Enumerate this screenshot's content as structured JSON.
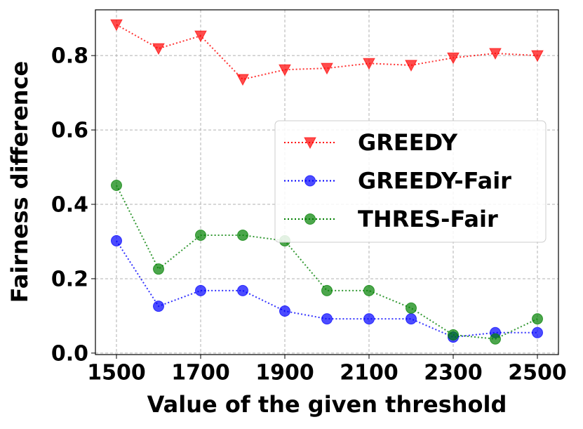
{
  "chart_data": {
    "type": "line",
    "x_label": "Value of the given threshold",
    "y_label": "Fairness difference",
    "x": [
      1500,
      1600,
      1700,
      1800,
      1900,
      2000,
      2100,
      2200,
      2300,
      2400,
      2500
    ],
    "series": [
      {
        "name": "GREEDY",
        "color": "#ff0000",
        "marker": "triangle-down",
        "values": [
          0.883,
          0.819,
          0.853,
          0.736,
          0.762,
          0.766,
          0.779,
          0.774,
          0.794,
          0.806,
          0.8
        ]
      },
      {
        "name": "GREEDY-Fair",
        "color": "#0000ff",
        "marker": "circle",
        "values": [
          0.302,
          0.126,
          0.168,
          0.168,
          0.113,
          0.092,
          0.092,
          0.092,
          0.043,
          0.055,
          0.055
        ]
      },
      {
        "name": "THRES-Fair",
        "color": "#008000",
        "marker": "circle",
        "values": [
          0.451,
          0.226,
          0.317,
          0.317,
          0.302,
          0.168,
          0.168,
          0.121,
          0.049,
          0.038,
          0.092
        ]
      }
    ],
    "xlim": [
      1450,
      2550
    ],
    "ylim": [
      -0.004,
      0.923
    ],
    "xticks": [
      1500,
      1700,
      1900,
      2100,
      2300,
      2500
    ],
    "yticks": [
      {
        "value": 0,
        "label": "0.0"
      },
      0.2,
      0.4,
      0.6,
      0.8
    ],
    "grid": true,
    "legend": "center right"
  }
}
